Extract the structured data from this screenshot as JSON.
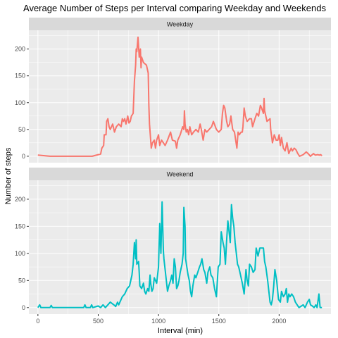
{
  "chart_data": {
    "type": "line",
    "title": "Average Number of Steps per Interval comparing Weekday and Weekends",
    "xlabel": "Interval (min)",
    "ylabel": "Number of steps",
    "xlim": [
      -75,
      2430
    ],
    "ylim": [
      -12,
      235
    ],
    "x_ticks": [
      0,
      500,
      1000,
      1500,
      2000
    ],
    "y_ticks": [
      0,
      50,
      100,
      150,
      200
    ],
    "grid": true,
    "legend": "none",
    "panels": [
      {
        "strip": "Weekday",
        "color": "#F8766D",
        "points": [
          [
            0,
            2
          ],
          [
            100,
            0
          ],
          [
            200,
            0
          ],
          [
            300,
            0
          ],
          [
            400,
            0
          ],
          [
            450,
            0
          ],
          [
            500,
            3
          ],
          [
            520,
            4
          ],
          [
            530,
            15
          ],
          [
            545,
            20
          ],
          [
            550,
            40
          ],
          [
            565,
            40
          ],
          [
            570,
            65
          ],
          [
            580,
            70
          ],
          [
            590,
            55
          ],
          [
            600,
            50
          ],
          [
            620,
            60
          ],
          [
            635,
            45
          ],
          [
            650,
            55
          ],
          [
            670,
            60
          ],
          [
            690,
            55
          ],
          [
            700,
            70
          ],
          [
            710,
            65
          ],
          [
            720,
            70
          ],
          [
            730,
            60
          ],
          [
            745,
            75
          ],
          [
            755,
            62
          ],
          [
            765,
            65
          ],
          [
            775,
            75
          ],
          [
            790,
            80
          ],
          [
            800,
            140
          ],
          [
            810,
            170
          ],
          [
            815,
            200
          ],
          [
            820,
            195
          ],
          [
            830,
            222
          ],
          [
            840,
            185
          ],
          [
            850,
            200
          ],
          [
            855,
            165
          ],
          [
            860,
            185
          ],
          [
            875,
            175
          ],
          [
            900,
            170
          ],
          [
            915,
            155
          ],
          [
            920,
            95
          ],
          [
            925,
            60
          ],
          [
            935,
            30
          ],
          [
            940,
            15
          ],
          [
            950,
            25
          ],
          [
            965,
            30
          ],
          [
            975,
            15
          ],
          [
            985,
            30
          ],
          [
            1000,
            40
          ],
          [
            1010,
            20
          ],
          [
            1025,
            30
          ],
          [
            1040,
            25
          ],
          [
            1055,
            20
          ],
          [
            1075,
            30
          ],
          [
            1100,
            45
          ],
          [
            1115,
            30
          ],
          [
            1140,
            28
          ],
          [
            1150,
            15
          ],
          [
            1160,
            30
          ],
          [
            1180,
            40
          ],
          [
            1200,
            55
          ],
          [
            1210,
            50
          ],
          [
            1215,
            85
          ],
          [
            1220,
            60
          ],
          [
            1230,
            45
          ],
          [
            1240,
            50
          ],
          [
            1250,
            40
          ],
          [
            1260,
            55
          ],
          [
            1275,
            40
          ],
          [
            1290,
            45
          ],
          [
            1310,
            50
          ],
          [
            1330,
            45
          ],
          [
            1345,
            60
          ],
          [
            1355,
            50
          ],
          [
            1370,
            30
          ],
          [
            1385,
            50
          ],
          [
            1400,
            45
          ],
          [
            1420,
            50
          ],
          [
            1440,
            55
          ],
          [
            1455,
            65
          ],
          [
            1480,
            50
          ],
          [
            1500,
            45
          ],
          [
            1520,
            50
          ],
          [
            1530,
            80
          ],
          [
            1540,
            95
          ],
          [
            1550,
            90
          ],
          [
            1565,
            65
          ],
          [
            1575,
            55
          ],
          [
            1590,
            60
          ],
          [
            1600,
            75
          ],
          [
            1615,
            50
          ],
          [
            1630,
            45
          ],
          [
            1650,
            15
          ],
          [
            1660,
            45
          ],
          [
            1670,
            40
          ],
          [
            1685,
            45
          ],
          [
            1695,
            45
          ],
          [
            1700,
            55
          ],
          [
            1710,
            90
          ],
          [
            1720,
            75
          ],
          [
            1735,
            65
          ],
          [
            1755,
            70
          ],
          [
            1770,
            70
          ],
          [
            1780,
            55
          ],
          [
            1800,
            70
          ],
          [
            1815,
            80
          ],
          [
            1830,
            75
          ],
          [
            1845,
            95
          ],
          [
            1855,
            90
          ],
          [
            1870,
            80
          ],
          [
            1875,
            108
          ],
          [
            1880,
            85
          ],
          [
            1900,
            65
          ],
          [
            1925,
            70
          ],
          [
            1930,
            50
          ],
          [
            1945,
            25
          ],
          [
            1960,
            40
          ],
          [
            1975,
            30
          ],
          [
            1990,
            30
          ],
          [
            2000,
            40
          ],
          [
            2010,
            20
          ],
          [
            2020,
            35
          ],
          [
            2035,
            15
          ],
          [
            2050,
            10
          ],
          [
            2065,
            25
          ],
          [
            2080,
            5
          ],
          [
            2100,
            15
          ],
          [
            2110,
            10
          ],
          [
            2125,
            15
          ],
          [
            2140,
            12
          ],
          [
            2155,
            5
          ],
          [
            2170,
            0
          ],
          [
            2200,
            3
          ],
          [
            2210,
            5
          ],
          [
            2225,
            8
          ],
          [
            2240,
            5
          ],
          [
            2260,
            0
          ],
          [
            2285,
            5
          ],
          [
            2300,
            2
          ],
          [
            2320,
            3
          ],
          [
            2335,
            2
          ],
          [
            2345,
            3
          ],
          [
            2355,
            1
          ]
        ]
      },
      {
        "strip": "Weekend",
        "color": "#00BFC4",
        "points": [
          [
            0,
            0
          ],
          [
            15,
            5
          ],
          [
            25,
            0
          ],
          [
            100,
            0
          ],
          [
            110,
            4
          ],
          [
            120,
            0
          ],
          [
            300,
            0
          ],
          [
            380,
            0
          ],
          [
            390,
            5
          ],
          [
            400,
            0
          ],
          [
            420,
            0
          ],
          [
            435,
            0
          ],
          [
            445,
            5
          ],
          [
            455,
            0
          ],
          [
            500,
            3
          ],
          [
            520,
            0
          ],
          [
            540,
            5
          ],
          [
            560,
            0
          ],
          [
            600,
            10
          ],
          [
            630,
            5
          ],
          [
            645,
            2
          ],
          [
            660,
            10
          ],
          [
            670,
            5
          ],
          [
            690,
            15
          ],
          [
            700,
            20
          ],
          [
            720,
            25
          ],
          [
            740,
            35
          ],
          [
            760,
            40
          ],
          [
            780,
            60
          ],
          [
            790,
            80
          ],
          [
            800,
            120
          ],
          [
            810,
            90
          ],
          [
            815,
            125
          ],
          [
            820,
            80
          ],
          [
            835,
            85
          ],
          [
            840,
            65
          ],
          [
            845,
            40
          ],
          [
            860,
            35
          ],
          [
            875,
            45
          ],
          [
            885,
            30
          ],
          [
            895,
            25
          ],
          [
            910,
            35
          ],
          [
            920,
            30
          ],
          [
            930,
            60
          ],
          [
            935,
            45
          ],
          [
            945,
            30
          ],
          [
            955,
            35
          ],
          [
            965,
            55
          ],
          [
            985,
            45
          ],
          [
            1000,
            75
          ],
          [
            1010,
            155
          ],
          [
            1020,
            100
          ],
          [
            1030,
            195
          ],
          [
            1040,
            105
          ],
          [
            1045,
            90
          ],
          [
            1055,
            70
          ],
          [
            1065,
            50
          ],
          [
            1075,
            30
          ],
          [
            1085,
            40
          ],
          [
            1100,
            50
          ],
          [
            1110,
            60
          ],
          [
            1120,
            45
          ],
          [
            1130,
            90
          ],
          [
            1140,
            75
          ],
          [
            1150,
            35
          ],
          [
            1160,
            40
          ],
          [
            1170,
            50
          ],
          [
            1180,
            65
          ],
          [
            1195,
            80
          ],
          [
            1205,
            100
          ],
          [
            1210,
            185
          ],
          [
            1220,
            150
          ],
          [
            1225,
            90
          ],
          [
            1235,
            75
          ],
          [
            1245,
            60
          ],
          [
            1255,
            50
          ],
          [
            1265,
            30
          ],
          [
            1275,
            20
          ],
          [
            1285,
            40
          ],
          [
            1300,
            60
          ],
          [
            1310,
            55
          ],
          [
            1325,
            65
          ],
          [
            1340,
            75
          ],
          [
            1350,
            80
          ],
          [
            1360,
            90
          ],
          [
            1375,
            70
          ],
          [
            1385,
            65
          ],
          [
            1400,
            45
          ],
          [
            1410,
            65
          ],
          [
            1425,
            75
          ],
          [
            1435,
            60
          ],
          [
            1450,
            55
          ],
          [
            1465,
            35
          ],
          [
            1480,
            20
          ],
          [
            1495,
            75
          ],
          [
            1510,
            80
          ],
          [
            1520,
            140
          ],
          [
            1535,
            120
          ],
          [
            1545,
            110
          ],
          [
            1555,
            80
          ],
          [
            1565,
            125
          ],
          [
            1575,
            160
          ],
          [
            1585,
            140
          ],
          [
            1595,
            120
          ],
          [
            1605,
            190
          ],
          [
            1615,
            165
          ],
          [
            1625,
            150
          ],
          [
            1635,
            120
          ],
          [
            1645,
            100
          ],
          [
            1655,
            80
          ],
          [
            1665,
            75
          ],
          [
            1680,
            60
          ],
          [
            1695,
            45
          ],
          [
            1710,
            25
          ],
          [
            1725,
            70
          ],
          [
            1735,
            50
          ],
          [
            1745,
            40
          ],
          [
            1755,
            80
          ],
          [
            1770,
            75
          ],
          [
            1785,
            65
          ],
          [
            1800,
            70
          ],
          [
            1810,
            110
          ],
          [
            1825,
            95
          ],
          [
            1840,
            110
          ],
          [
            1855,
            110
          ],
          [
            1870,
            110
          ],
          [
            1880,
            85
          ],
          [
            1890,
            75
          ],
          [
            1905,
            50
          ],
          [
            1915,
            30
          ],
          [
            1925,
            10
          ],
          [
            1935,
            5
          ],
          [
            1945,
            15
          ],
          [
            1955,
            40
          ],
          [
            1965,
            70
          ],
          [
            1980,
            50
          ],
          [
            1995,
            15
          ],
          [
            2010,
            10
          ],
          [
            2020,
            30
          ],
          [
            2035,
            20
          ],
          [
            2050,
            25
          ],
          [
            2060,
            35
          ],
          [
            2070,
            10
          ],
          [
            2080,
            25
          ],
          [
            2090,
            20
          ],
          [
            2105,
            25
          ],
          [
            2120,
            20
          ],
          [
            2135,
            10
          ],
          [
            2150,
            5
          ],
          [
            2165,
            0
          ],
          [
            2200,
            5
          ],
          [
            2215,
            0
          ],
          [
            2235,
            10
          ],
          [
            2250,
            15
          ],
          [
            2260,
            5
          ],
          [
            2275,
            3
          ],
          [
            2290,
            0
          ],
          [
            2305,
            5
          ],
          [
            2315,
            0
          ],
          [
            2330,
            25
          ],
          [
            2340,
            0
          ],
          [
            2355,
            0
          ]
        ]
      }
    ]
  }
}
